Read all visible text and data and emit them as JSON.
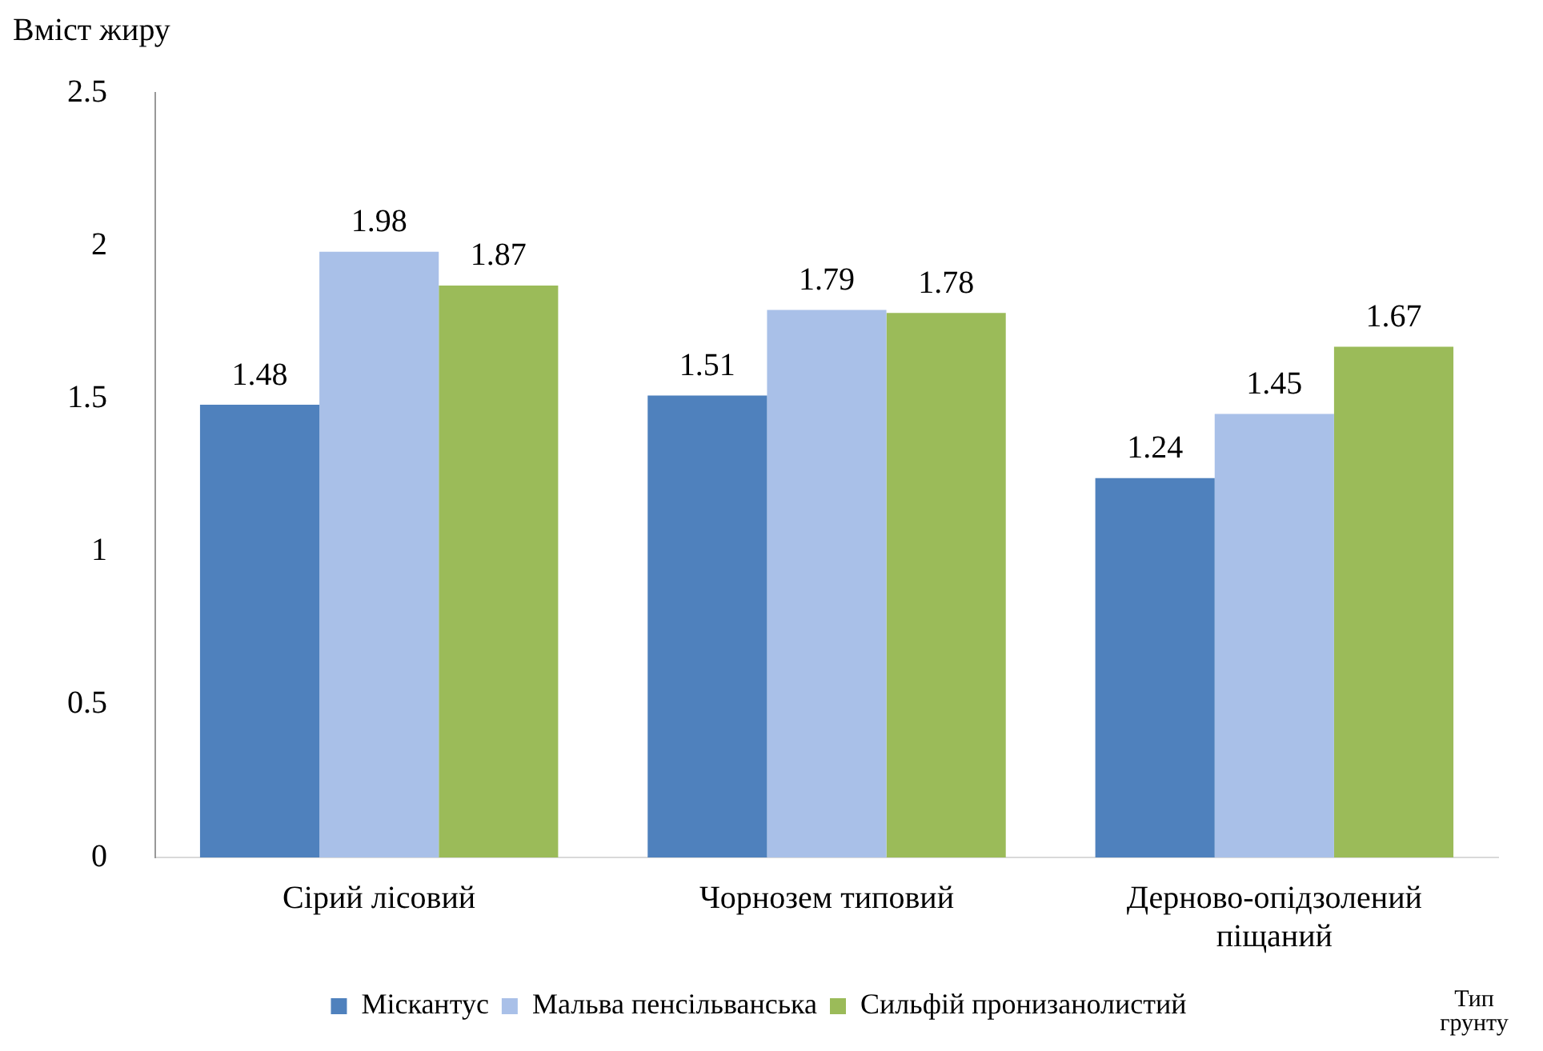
{
  "chart_data": {
    "type": "bar",
    "ylabel": "Вміст жиру",
    "xlabel": "Тип грунту",
    "categories": [
      "Сірий лісовий",
      "Чорнозем типовий",
      "Дерново-опідзолений піщаний"
    ],
    "series": [
      {
        "name": "Міскантус",
        "color": "#4f81bd",
        "values": [
          1.48,
          1.51,
          1.24
        ]
      },
      {
        "name": "Мальва пенсільванська",
        "color": "#a9c0e8",
        "values": [
          1.98,
          1.79,
          1.45
        ]
      },
      {
        "name": "Сильфій пронизанолистий",
        "color": "#9bbb59",
        "values": [
          1.87,
          1.78,
          1.67
        ]
      }
    ],
    "ylim": [
      0,
      2.5
    ],
    "yticks": [
      0,
      0.5,
      1,
      1.5,
      2,
      2.5
    ],
    "grid": false,
    "legend": "bottom",
    "data_labels": true
  }
}
